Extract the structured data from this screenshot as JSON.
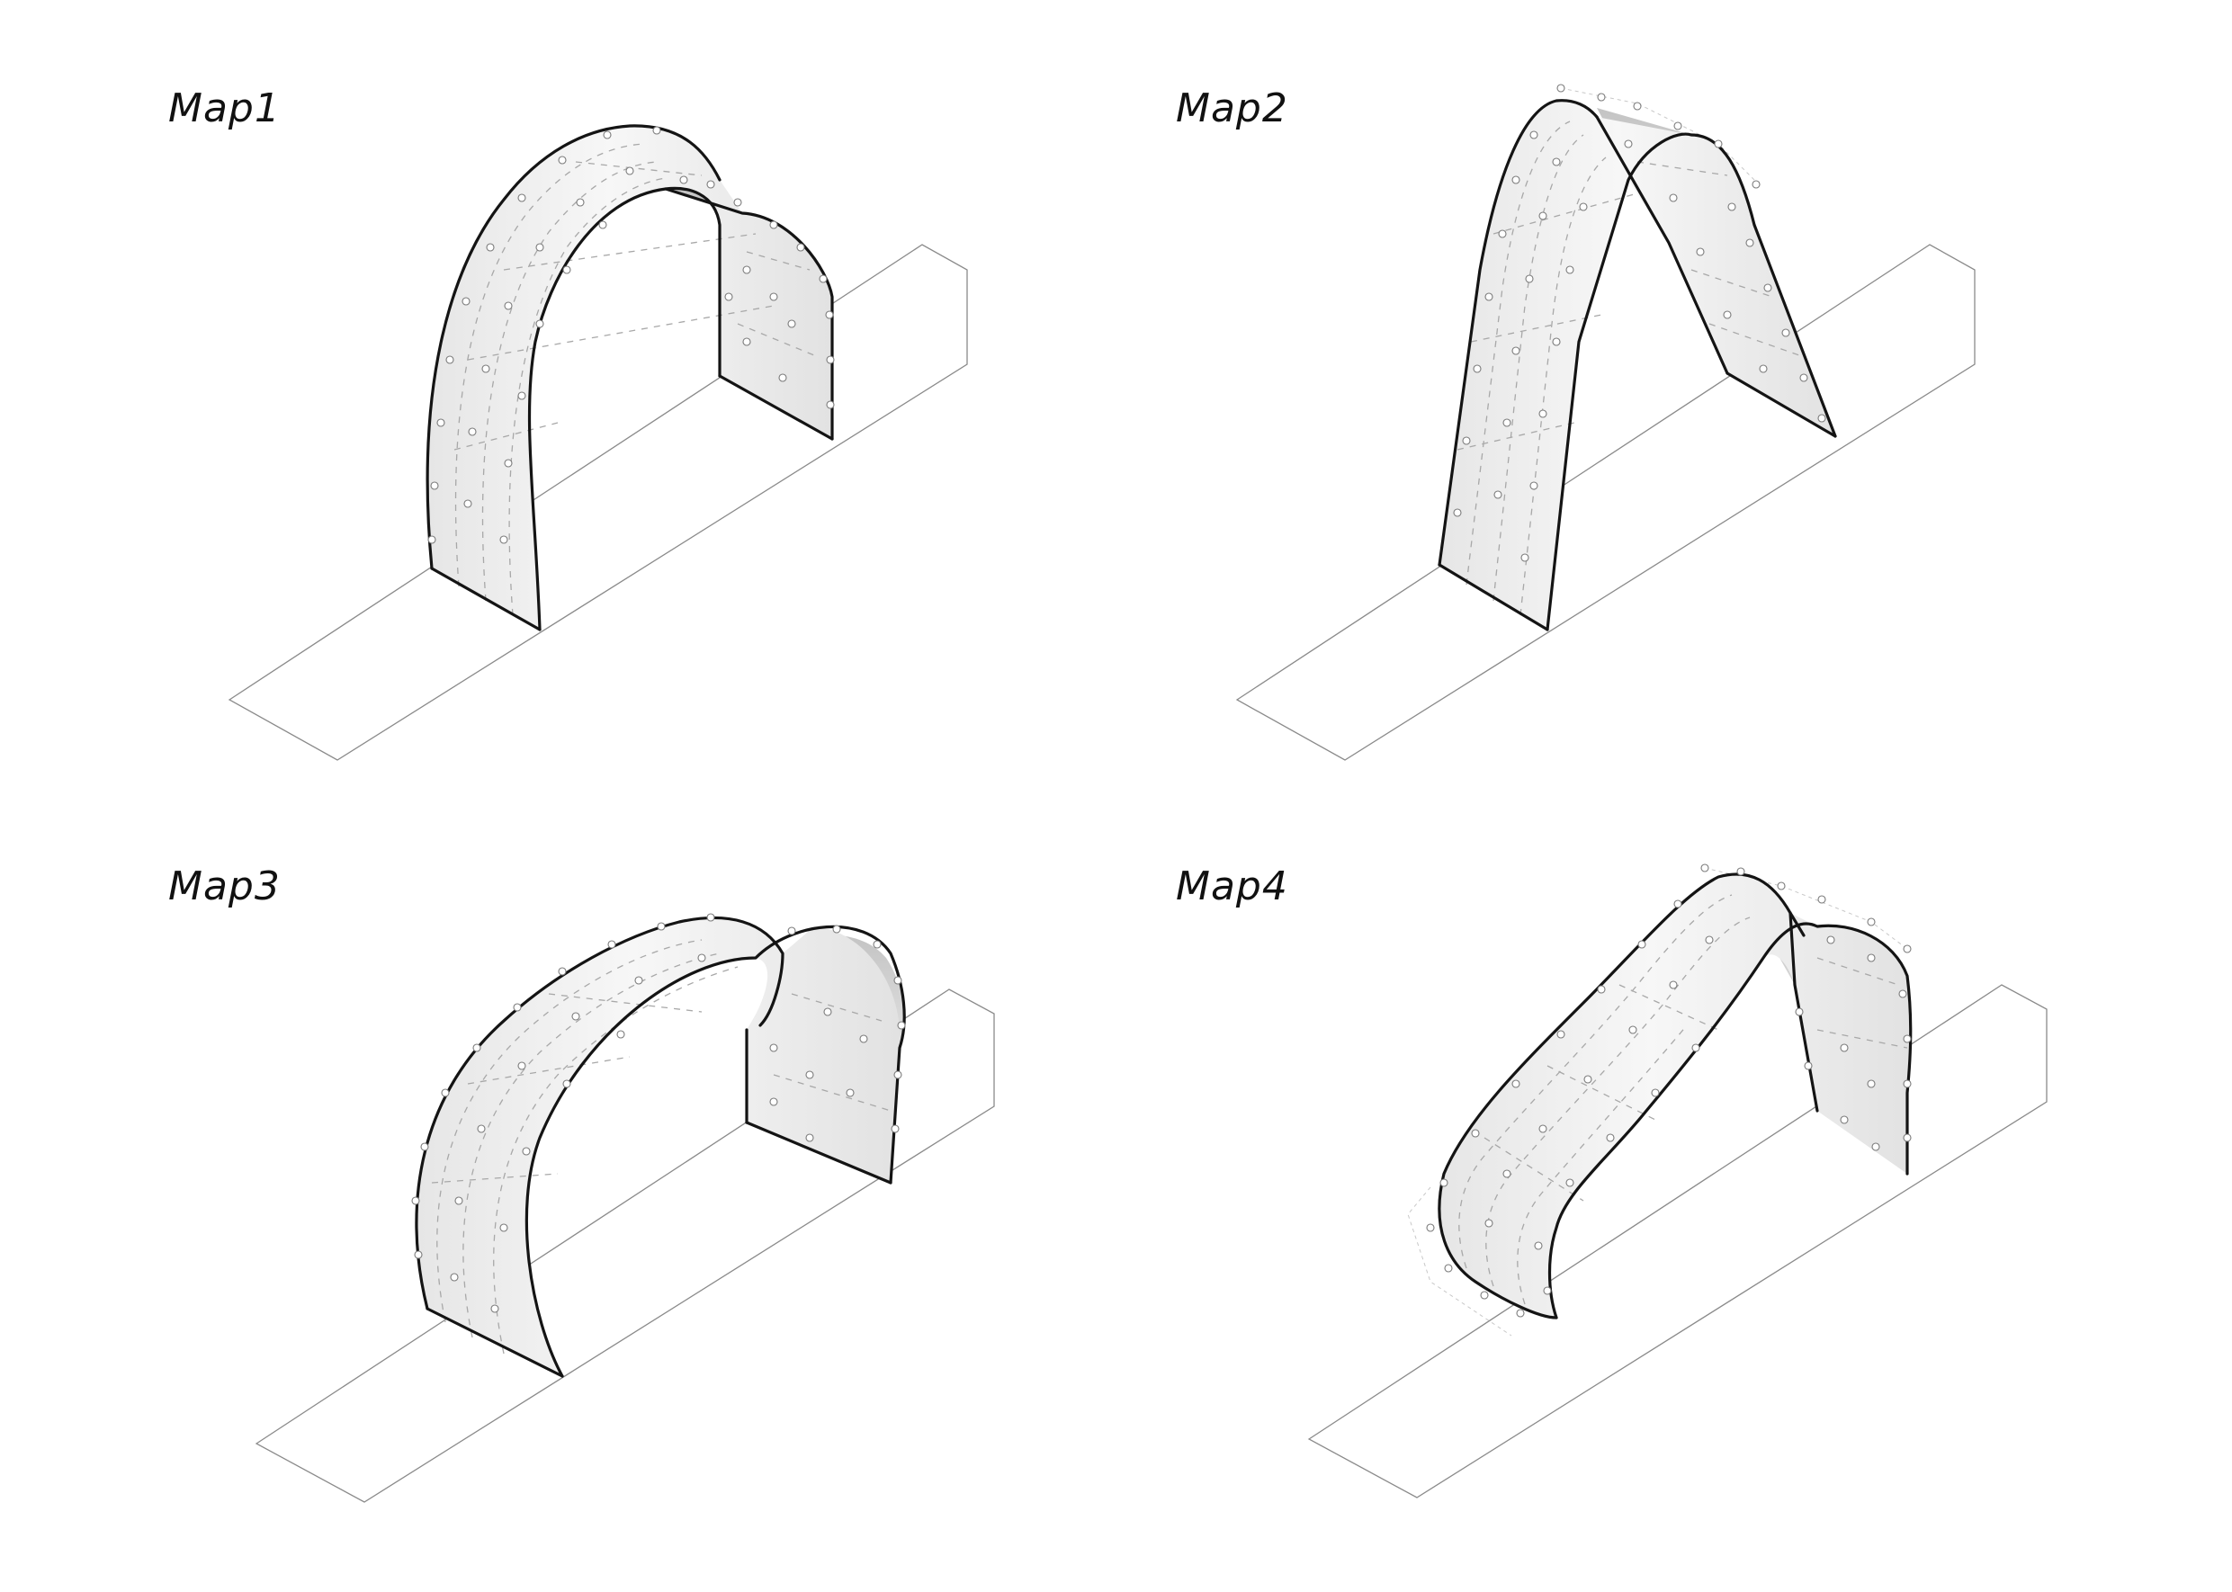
{
  "maps": [
    {
      "id": "map1",
      "label": "Map1"
    },
    {
      "id": "map2",
      "label": "Map2"
    },
    {
      "id": "map3",
      "label": "Map3"
    },
    {
      "id": "map4",
      "label": "Map4"
    }
  ]
}
